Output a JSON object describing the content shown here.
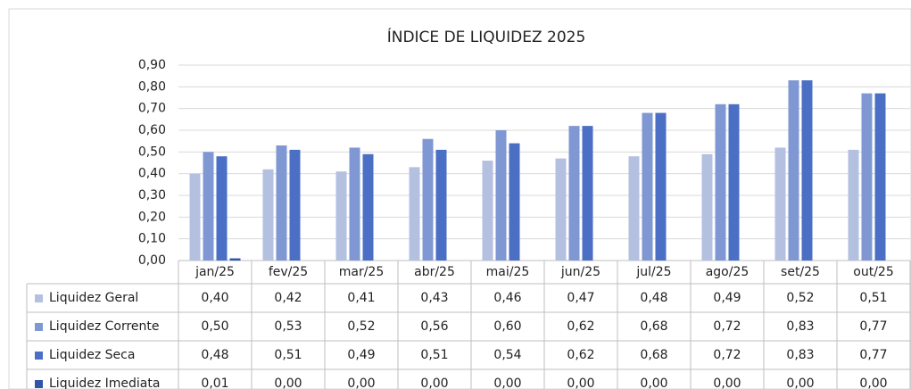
{
  "chart_data": {
    "type": "bar",
    "title": "ÍNDICE DE LIQUIDEZ 2025",
    "categories": [
      "jan/25",
      "fev/25",
      "mar/25",
      "abr/25",
      "mai/25",
      "jun/25",
      "jul/25",
      "ago/25",
      "set/25",
      "out/25"
    ],
    "series": [
      {
        "name": "Liquidez Geral",
        "color": "#b4c0e0",
        "values": [
          0.4,
          0.42,
          0.41,
          0.43,
          0.46,
          0.47,
          0.48,
          0.49,
          0.52,
          0.51
        ],
        "value_labels": [
          "0,40",
          "0,42",
          "0,41",
          "0,43",
          "0,46",
          "0,47",
          "0,48",
          "0,49",
          "0,52",
          "0,51"
        ]
      },
      {
        "name": "Liquidez Corrente",
        "color": "#7f97d2",
        "values": [
          0.5,
          0.53,
          0.52,
          0.56,
          0.6,
          0.62,
          0.68,
          0.72,
          0.83,
          0.77
        ],
        "value_labels": [
          "0,50",
          "0,53",
          "0,52",
          "0,56",
          "0,60",
          "0,62",
          "0,68",
          "0,72",
          "0,83",
          "0,77"
        ]
      },
      {
        "name": "Liquidez Seca",
        "color": "#4a6fc4",
        "values": [
          0.48,
          0.51,
          0.49,
          0.51,
          0.54,
          0.62,
          0.68,
          0.72,
          0.83,
          0.77
        ],
        "value_labels": [
          "0,48",
          "0,51",
          "0,49",
          "0,51",
          "0,54",
          "0,62",
          "0,68",
          "0,72",
          "0,83",
          "0,77"
        ]
      },
      {
        "name": "Liquidez Imediata",
        "color": "#2f54a8",
        "values": [
          0.01,
          0,
          0,
          0,
          0,
          0,
          0,
          0,
          0,
          0
        ],
        "value_labels": [
          "0,01",
          "0,00",
          "0,00",
          "0,00",
          "0,00",
          "0,00",
          "0,00",
          "0,00",
          "0,00",
          "0,00"
        ]
      }
    ],
    "ylim": [
      0,
      0.9
    ],
    "yticks": [
      {
        "value": 0,
        "label": "0,00"
      },
      {
        "value": 0.1,
        "label": "0,10"
      },
      {
        "value": 0.2,
        "label": "0,20"
      },
      {
        "value": 0.3,
        "label": "0,30"
      },
      {
        "value": 0.4,
        "label": "0,40"
      },
      {
        "value": 0.5,
        "label": "0,50"
      },
      {
        "value": 0.6,
        "label": "0,60"
      },
      {
        "value": 0.7,
        "label": "0,70"
      },
      {
        "value": 0.8,
        "label": "0,80"
      },
      {
        "value": 0.9,
        "label": "0,90"
      }
    ],
    "grid": true
  }
}
